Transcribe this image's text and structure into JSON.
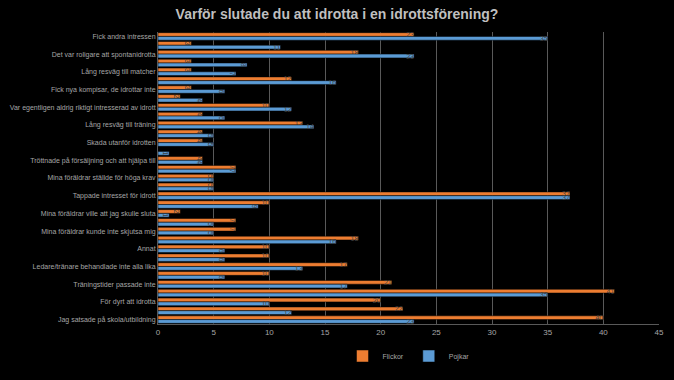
{
  "chart_data": {
    "type": "bar",
    "title": "Varför slutade du att idrotta i en idrottsförening?",
    "orientation": "horizontal",
    "categories": [
      "Fick andra intressen",
      null,
      "Det var roligare att spontanidrotta",
      null,
      "Lång resväg till matcher",
      null,
      "Fick nya kompisar, de idrottar inte",
      null,
      "Var egentligen aldrig riktigt intresserad av idrott",
      null,
      "Lång resväg till träning",
      null,
      "Skada utanför idrotten",
      null,
      "Tröttnade på försäljning och att hjälpa till",
      null,
      "Mina föräldrar ställde för höga krav",
      null,
      "Tappade intresset för idrott",
      null,
      "Mina föräldrar ville att jag skulle sluta",
      null,
      "Mina föräldrar kunde inte skjutsa mig",
      null,
      "Annat",
      null,
      "Ledare/tränare behandlade inte alla lika",
      null,
      "Träningstider passade inte",
      null,
      "För dyrt att idrotta",
      null,
      "Jag satsade på skola/utbildning"
    ],
    "series": [
      {
        "name": "Flickor",
        "color": "#ed7d31",
        "values": [
          23,
          3,
          18,
          3,
          3,
          12,
          3,
          2,
          10,
          4,
          13,
          4,
          4,
          0,
          4,
          7,
          5,
          5,
          37,
          10,
          2,
          7,
          7,
          18,
          10,
          10,
          17,
          10,
          21,
          41,
          20,
          22,
          40
        ]
      },
      {
        "name": "Pojkar",
        "color": "#5b9bd5",
        "values": [
          35,
          11,
          23,
          8,
          7,
          16,
          6,
          4,
          12,
          6,
          14,
          5,
          5,
          1,
          4,
          7,
          5,
          5,
          37,
          9,
          1,
          5,
          5,
          16,
          6,
          6,
          13,
          6,
          17,
          35,
          10,
          12,
          23
        ]
      }
    ],
    "xlim": [
      0,
      45
    ],
    "xticks": [
      0,
      5,
      10,
      15,
      20,
      25,
      30,
      35,
      40,
      45
    ],
    "grid": true,
    "legend": "bottom",
    "data_labels": true
  }
}
